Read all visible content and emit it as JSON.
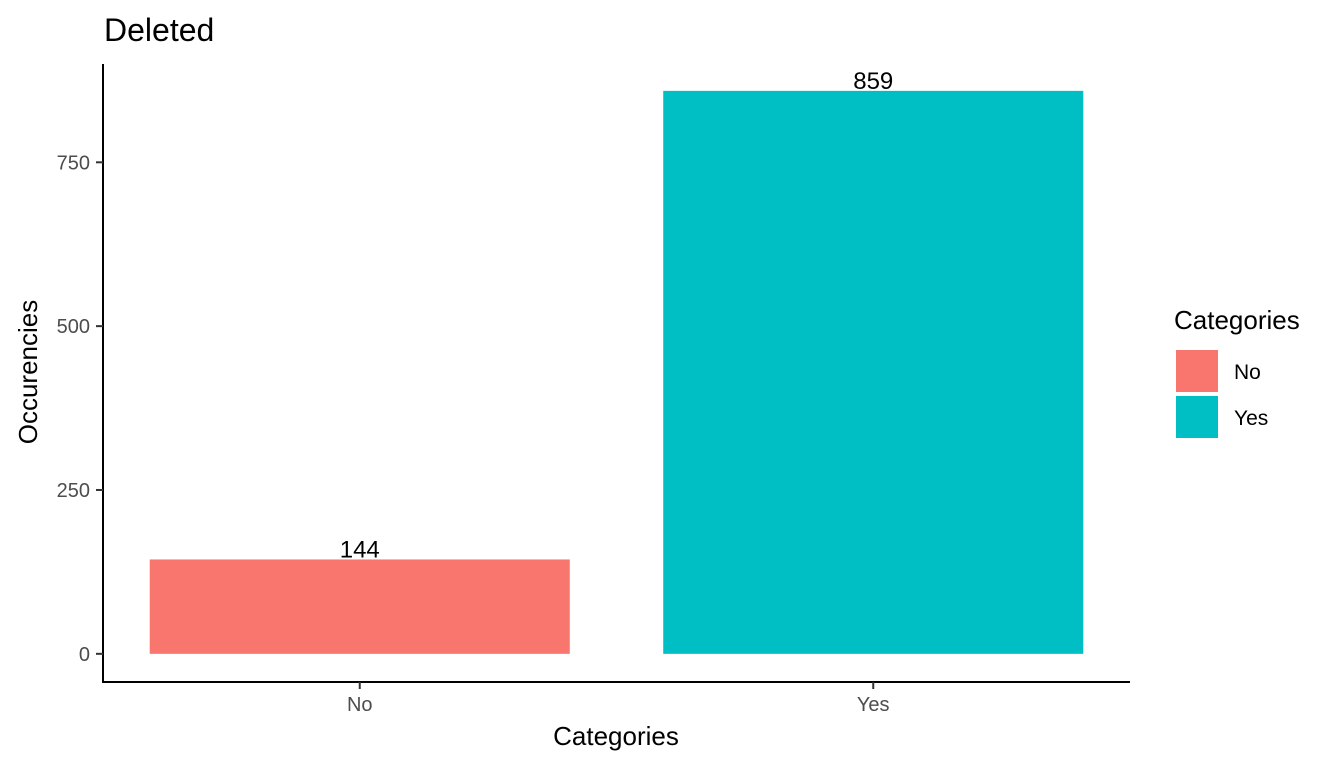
{
  "chart_data": {
    "type": "bar",
    "title": "Deleted",
    "xlabel": "Categories",
    "ylabel": "Occurencies",
    "categories": [
      "No",
      "Yes"
    ],
    "values": [
      144,
      859
    ],
    "data_labels": [
      "144",
      "859"
    ],
    "colors": [
      "#F8766D",
      "#00BFC4"
    ],
    "yticks": [
      0,
      250,
      500,
      750
    ],
    "ytick_labels": [
      "0",
      "250",
      "500",
      "750"
    ],
    "ylim": [
      -43,
      900
    ],
    "grid": false,
    "legend": {
      "title": "Categories",
      "placement": "right",
      "entries": [
        {
          "label": "No",
          "color": "#F8766D"
        },
        {
          "label": "Yes",
          "color": "#00BFC4"
        }
      ]
    }
  }
}
